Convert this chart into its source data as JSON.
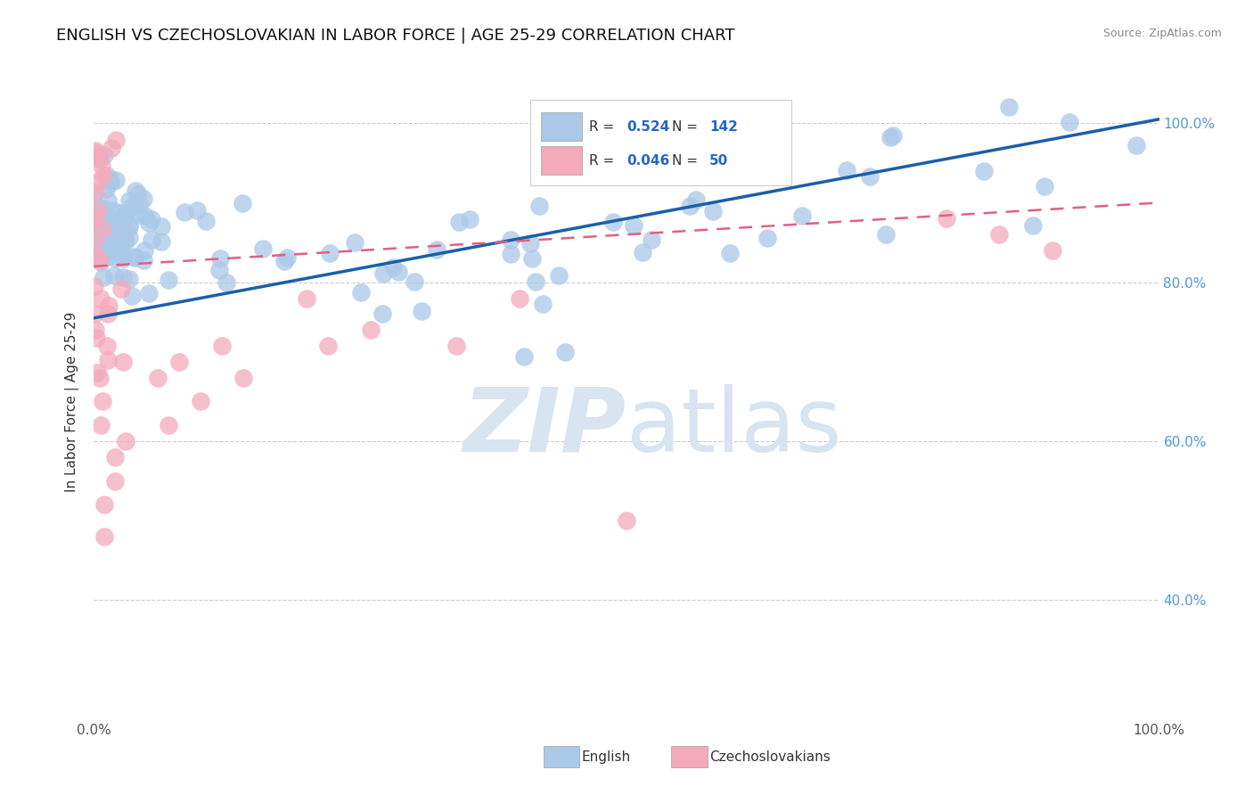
{
  "title": "ENGLISH VS CZECHOSLOVAKIAN IN LABOR FORCE | AGE 25-29 CORRELATION CHART",
  "source": "Source: ZipAtlas.com",
  "ylabel": "In Labor Force | Age 25-29",
  "r_english": 0.524,
  "n_english": 142,
  "r_czech": 0.046,
  "n_czech": 50,
  "blue_color": "#aac8e8",
  "blue_line_color": "#1a5fa8",
  "pink_color": "#f4aabb",
  "pink_line_color": "#e06080",
  "background_color": "#ffffff",
  "grid_color": "#cccccc",
  "watermark_color": "#d8e4f0",
  "legend_label_english": "English",
  "legend_label_czech": "Czechoslovakians",
  "tick_color_right": "#5599cc",
  "xmin": 0.0,
  "xmax": 1.0,
  "ymin": 0.25,
  "ymax": 1.05,
  "title_fontsize": 13,
  "label_fontsize": 11,
  "tick_fontsize": 11,
  "source_fontsize": 9
}
